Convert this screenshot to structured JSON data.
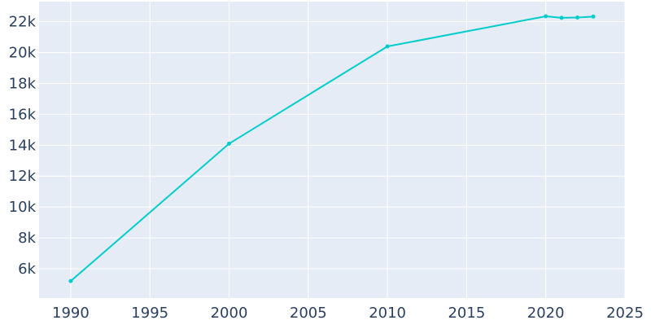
{
  "chart_data": {
    "type": "line",
    "title": "",
    "xlabel": "",
    "ylabel": "",
    "xlim": [
      1988,
      2025
    ],
    "ylim": [
      4100,
      23300
    ],
    "x_ticks": [
      1990,
      1995,
      2000,
      2005,
      2010,
      2015,
      2020,
      2025
    ],
    "x_tick_labels": [
      "1990",
      "1995",
      "2000",
      "2005",
      "2010",
      "2015",
      "2020",
      "2025"
    ],
    "y_ticks": [
      6000,
      8000,
      10000,
      12000,
      14000,
      16000,
      18000,
      20000,
      22000
    ],
    "y_tick_labels": [
      "6k",
      "8k",
      "10k",
      "12k",
      "14k",
      "16k",
      "18k",
      "20k",
      "22k"
    ],
    "grid": true,
    "legend": "none",
    "colors": {
      "line": "#00cccc",
      "plot_background": "#e5ecf6",
      "grid": "#ffffff",
      "tick_text": "#2a3f5f"
    },
    "series": [
      {
        "x": [
          1990,
          2000,
          2010,
          2020,
          2021,
          2022,
          2023
        ],
        "y": [
          5200,
          14100,
          20400,
          22350,
          22250,
          22270,
          22330
        ]
      }
    ]
  }
}
